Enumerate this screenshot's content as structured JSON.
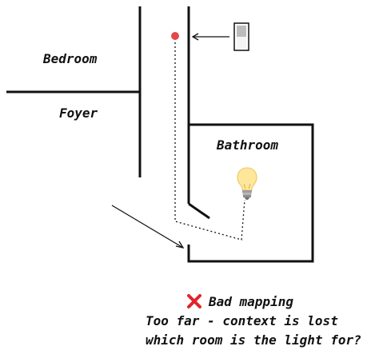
{
  "rooms": {
    "bedroom": "Bedroom",
    "foyer": "Foyer",
    "bathroom": "Bathroom"
  },
  "caption": {
    "status": "Bad mapping",
    "line_1": "Too far - context is lost",
    "line_2": "which room is the light for?"
  },
  "icons": {
    "status": "x-mark-icon",
    "light": "light-bulb-icon",
    "switch": "light-switch-icon",
    "switch_dot": "switch-location-dot-icon"
  },
  "colors": {
    "wall": "#111111",
    "x_mark": "#e0252b",
    "switch_dot": "#e34848",
    "bulb": "#ffe79a"
  }
}
